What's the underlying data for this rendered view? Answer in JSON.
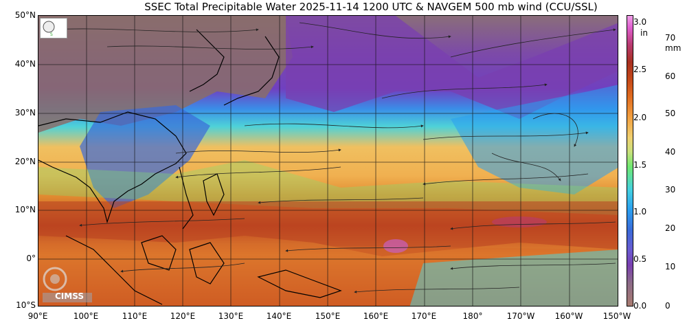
{
  "title": "SSEC Total Precipitable Water  2025-11-14 1200 UTC & NAVGEM 500 mb wind (CCU/SSL)",
  "lat_labels": [
    "50°N",
    "40°N",
    "30°N",
    "20°N",
    "10°N",
    "0°",
    "10°S"
  ],
  "lon_labels": [
    "90°E",
    "100°E",
    "110°E",
    "120°E",
    "130°E",
    "140°E",
    "150°E",
    "160°E",
    "170°E",
    "180°",
    "170°W",
    "160°W",
    "150°W"
  ],
  "colorbar": {
    "in_unit": "in",
    "mm_unit": "mm",
    "in_ticks": [
      "3.0",
      "2.5",
      "2.0",
      "1.5",
      "1.0",
      "0.5",
      "0.0"
    ],
    "mm_ticks": [
      "70",
      "60",
      "50",
      "40",
      "30",
      "20",
      "10",
      "0"
    ]
  },
  "logo_bottom": "CIMSS",
  "colors": {
    "dry_land": "#8a6d6a",
    "dry_purple": "#7a3fb0",
    "moist_blue": "#3a8ee8",
    "cyan": "#4ed2d8",
    "green": "#84e070",
    "yellow_orange": "#f0b050",
    "orange": "#e07a28",
    "red_brown": "#b84020",
    "magenta": "#c860c0"
  }
}
